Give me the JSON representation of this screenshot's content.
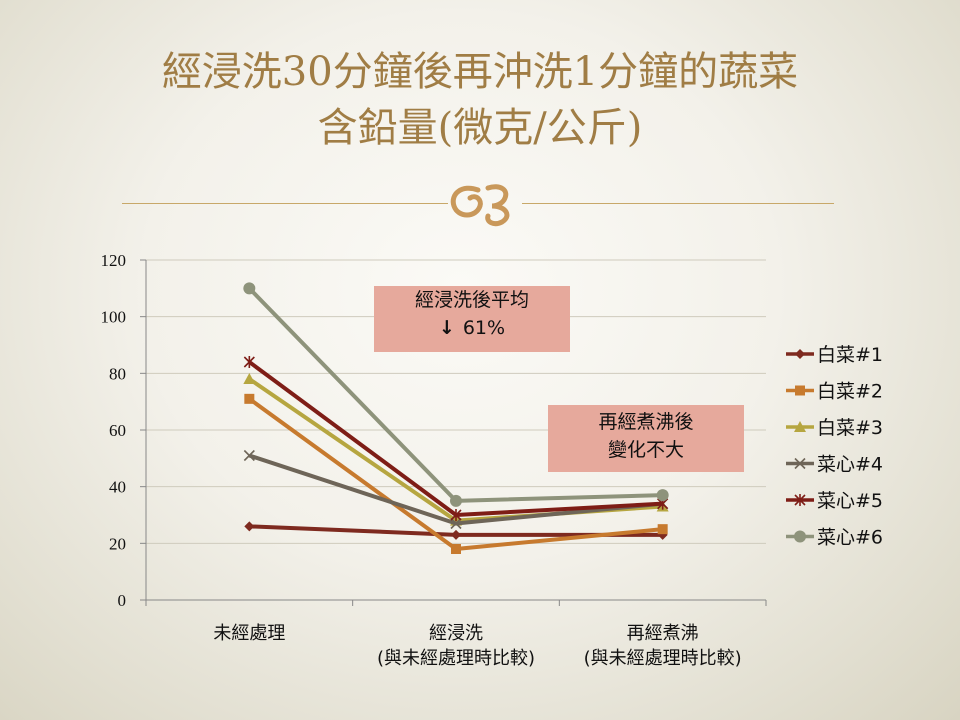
{
  "slide": {
    "title_line1": "經浸洗30分鐘後再沖洗1分鐘的蔬菜",
    "title_line2": "含鉛量(微克/公斤)"
  },
  "callouts": {
    "left_line1": "經浸洗後平均",
    "left_arrow": "↓",
    "left_line2": "61%",
    "right_line1": "再經煮沸後",
    "right_line2": "變化不大"
  },
  "colors": {
    "title": "#a07d45",
    "callout_bg": "#e6a99c"
  },
  "chart_data": {
    "type": "line",
    "categories": [
      [
        "未經處理"
      ],
      [
        "經浸洗",
        "(與未經處理時比較)"
      ],
      [
        "再經煮沸",
        "(與未經處理時比較)"
      ]
    ],
    "ylim": [
      0,
      120
    ],
    "yticks": [
      0,
      20,
      40,
      60,
      80,
      100,
      120
    ],
    "grid": true,
    "legend_position": "right",
    "series": [
      {
        "name": "白菜#1",
        "marker": "diamond",
        "color": "#7e2a1f",
        "values": [
          26,
          23,
          23
        ]
      },
      {
        "name": "白菜#2",
        "marker": "square",
        "color": "#c77a2e",
        "values": [
          71,
          18,
          25
        ]
      },
      {
        "name": "白菜#3",
        "marker": "triangle",
        "color": "#b6a640",
        "values": [
          78,
          28,
          33
        ]
      },
      {
        "name": "菜心#4",
        "marker": "x",
        "color": "#6e6558",
        "values": [
          51,
          27,
          34
        ]
      },
      {
        "name": "菜心#5",
        "marker": "star",
        "color": "#7e1d16",
        "values": [
          84,
          30,
          34
        ]
      },
      {
        "name": "菜心#6",
        "marker": "circle",
        "color": "#8e937b",
        "values": [
          110,
          35,
          37
        ]
      }
    ]
  }
}
